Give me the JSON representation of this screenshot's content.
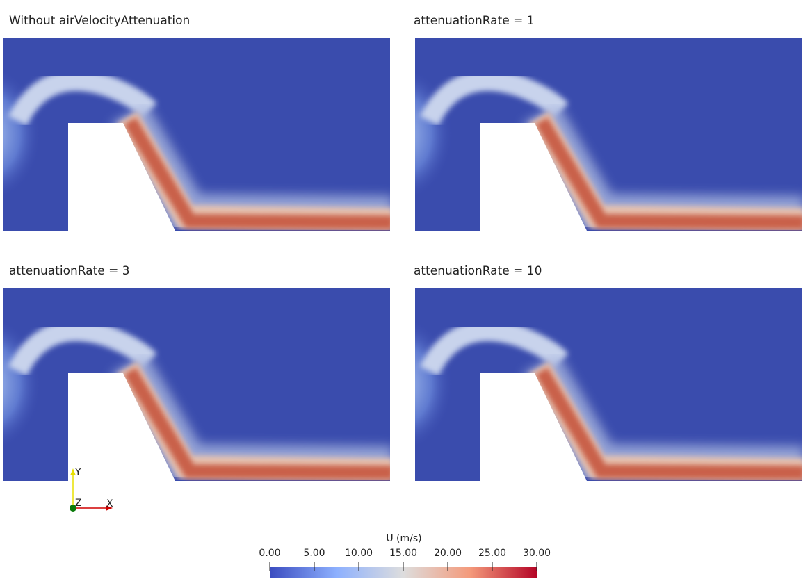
{
  "panels": [
    {
      "title": "Without airVelocityAttenuation"
    },
    {
      "title": "attenuationRate = 1"
    },
    {
      "title": "attenuationRate = 3"
    },
    {
      "title": "attenuationRate = 10"
    }
  ],
  "colorbar": {
    "title": "U (m/s)",
    "range": [
      0,
      30
    ],
    "ticks": [
      {
        "value": 0,
        "label": "0.00"
      },
      {
        "value": 5,
        "label": "5.00"
      },
      {
        "value": 10,
        "label": "10.00"
      },
      {
        "value": 15,
        "label": "15.00"
      },
      {
        "value": 20,
        "label": "20.00"
      },
      {
        "value": 25,
        "label": "25.00"
      },
      {
        "value": 30,
        "label": "30.00"
      }
    ]
  },
  "axes": {
    "y": "Y",
    "z": "Z",
    "x": "X"
  }
}
